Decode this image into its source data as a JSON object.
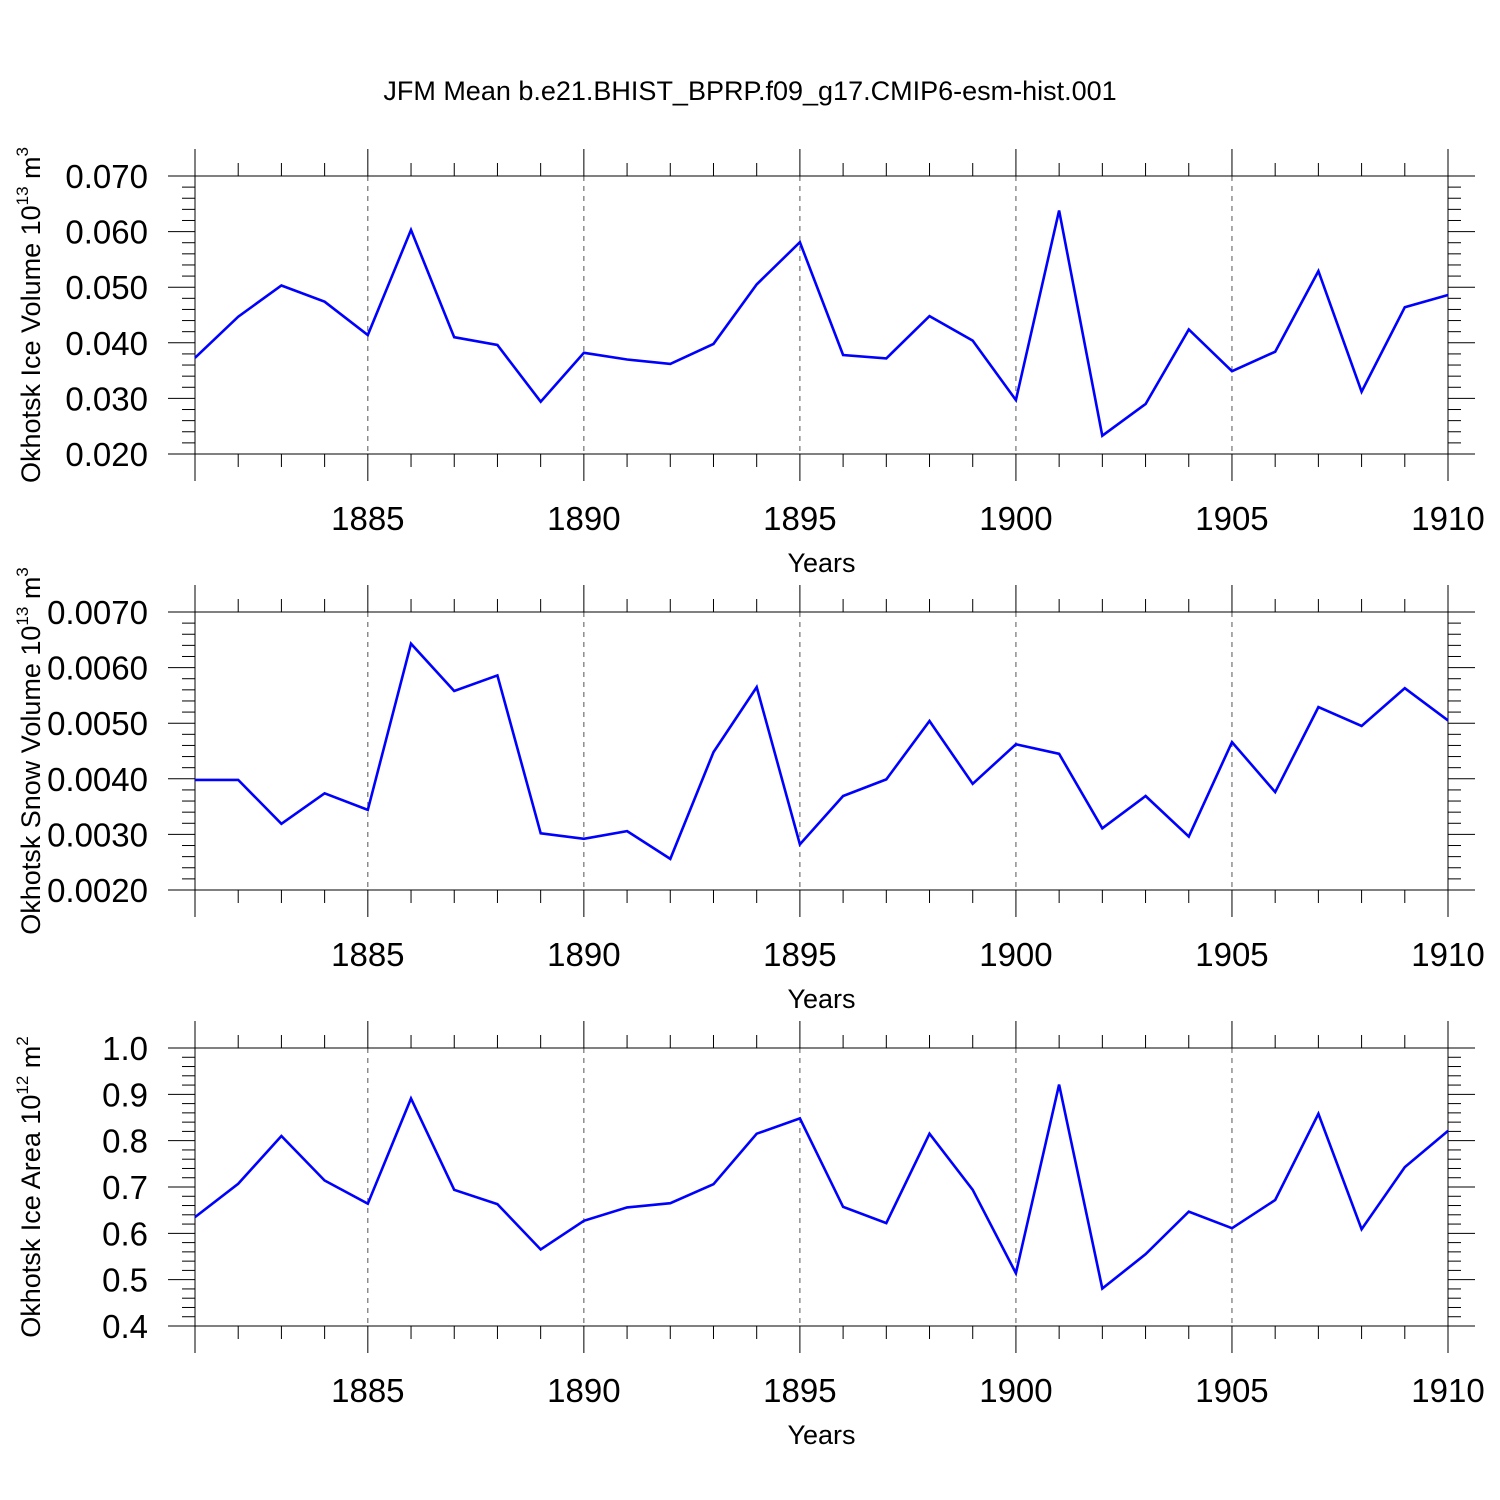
{
  "title": "JFM Mean b.e21.BHIST_BPRP.f09_g17.CMIP6-esm-hist.001",
  "colors": {
    "series": "#0000ff",
    "axes": "#000000",
    "grid": "#555555"
  },
  "chart_data": [
    {
      "type": "line",
      "title": "",
      "xlabel": "Years",
      "ylabel": {
        "text": "Okhotsk Ice Volume 10",
        "exponent": "13",
        "unit": "m",
        "unit_exponent": "3"
      },
      "xlim": [
        1881,
        1910
      ],
      "ylim": [
        0.02,
        0.07
      ],
      "xticks": [
        1885,
        1890,
        1895,
        1900,
        1905,
        1910
      ],
      "xtick_labels": [
        "1885",
        "1890",
        "1895",
        "1900",
        "1905",
        "1910"
      ],
      "yticks": [
        0.02,
        0.03,
        0.04,
        0.05,
        0.06,
        0.07
      ],
      "ytick_labels": [
        "0.020",
        "0.030",
        "0.040",
        "0.050",
        "0.060",
        "0.070"
      ],
      "grid": "vertical dashed at major x ticks",
      "series": [
        {
          "name": "Okhotsk Ice Volume",
          "x": [
            1881,
            1882,
            1883,
            1884,
            1885,
            1886,
            1887,
            1888,
            1889,
            1890,
            1891,
            1892,
            1893,
            1894,
            1895,
            1896,
            1897,
            1898,
            1899,
            1900,
            1901,
            1902,
            1903,
            1904,
            1905,
            1906,
            1907,
            1908,
            1909,
            1910
          ],
          "values": [
            0.0373,
            0.0447,
            0.0503,
            0.0474,
            0.0414,
            0.0603,
            0.041,
            0.0396,
            0.0294,
            0.0382,
            0.037,
            0.0362,
            0.0398,
            0.0505,
            0.0581,
            0.0378,
            0.0372,
            0.0448,
            0.0404,
            0.0297,
            0.0638,
            0.0233,
            0.029,
            0.0424,
            0.0349,
            0.0384,
            0.0529,
            0.0312,
            0.0464,
            0.0486
          ]
        }
      ]
    },
    {
      "type": "line",
      "title": "",
      "xlabel": "Years",
      "ylabel": {
        "text": "Okhotsk Snow Volume 10",
        "exponent": "13",
        "unit": "m",
        "unit_exponent": "3"
      },
      "xlim": [
        1881,
        1910
      ],
      "ylim": [
        0.002,
        0.007
      ],
      "xticks": [
        1885,
        1890,
        1895,
        1900,
        1905,
        1910
      ],
      "xtick_labels": [
        "1885",
        "1890",
        "1895",
        "1900",
        "1905",
        "1910"
      ],
      "yticks": [
        0.002,
        0.003,
        0.004,
        0.005,
        0.006,
        0.007
      ],
      "ytick_labels": [
        "0.0020",
        "0.0030",
        "0.0040",
        "0.0050",
        "0.0060",
        "0.0070"
      ],
      "grid": "vertical dashed at major x ticks",
      "series": [
        {
          "name": "Okhotsk Snow Volume",
          "x": [
            1881,
            1882,
            1883,
            1884,
            1885,
            1886,
            1887,
            1888,
            1889,
            1890,
            1891,
            1892,
            1893,
            1894,
            1895,
            1896,
            1897,
            1898,
            1899,
            1900,
            1901,
            1902,
            1903,
            1904,
            1905,
            1906,
            1907,
            1908,
            1909,
            1910
          ],
          "values": [
            0.00398,
            0.00398,
            0.00319,
            0.00374,
            0.00344,
            0.00643,
            0.00558,
            0.00586,
            0.00302,
            0.00292,
            0.00306,
            0.00256,
            0.00448,
            0.00565,
            0.00282,
            0.00369,
            0.00399,
            0.00504,
            0.00391,
            0.00462,
            0.00445,
            0.00311,
            0.00369,
            0.00296,
            0.00466,
            0.00376,
            0.00529,
            0.00495,
            0.00563,
            0.00505
          ]
        }
      ]
    },
    {
      "type": "line",
      "title": "",
      "xlabel": "Years",
      "ylabel": {
        "text": "Okhotsk Ice Area 10",
        "exponent": "12",
        "unit": "m",
        "unit_exponent": "2"
      },
      "xlim": [
        1881,
        1910
      ],
      "ylim": [
        0.4,
        1.0
      ],
      "xticks": [
        1885,
        1890,
        1895,
        1900,
        1905,
        1910
      ],
      "xtick_labels": [
        "1885",
        "1890",
        "1895",
        "1900",
        "1905",
        "1910"
      ],
      "yticks": [
        0.4,
        0.5,
        0.6,
        0.7,
        0.8,
        0.9,
        1.0
      ],
      "ytick_labels": [
        "0.4",
        "0.5",
        "0.6",
        "0.7",
        "0.8",
        "0.9",
        "1.0"
      ],
      "grid": "vertical dashed at major x ticks",
      "series": [
        {
          "name": "Okhotsk Ice Area",
          "x": [
            1881,
            1882,
            1883,
            1884,
            1885,
            1886,
            1887,
            1888,
            1889,
            1890,
            1891,
            1892,
            1893,
            1894,
            1895,
            1896,
            1897,
            1898,
            1899,
            1900,
            1901,
            1902,
            1903,
            1904,
            1905,
            1906,
            1907,
            1908,
            1909,
            1910
          ],
          "values": [
            0.635,
            0.707,
            0.81,
            0.714,
            0.664,
            0.891,
            0.694,
            0.663,
            0.565,
            0.627,
            0.656,
            0.665,
            0.706,
            0.815,
            0.848,
            0.657,
            0.622,
            0.815,
            0.694,
            0.514,
            0.921,
            0.481,
            0.555,
            0.647,
            0.611,
            0.672,
            0.858,
            0.609,
            0.743,
            0.821
          ]
        }
      ]
    }
  ]
}
